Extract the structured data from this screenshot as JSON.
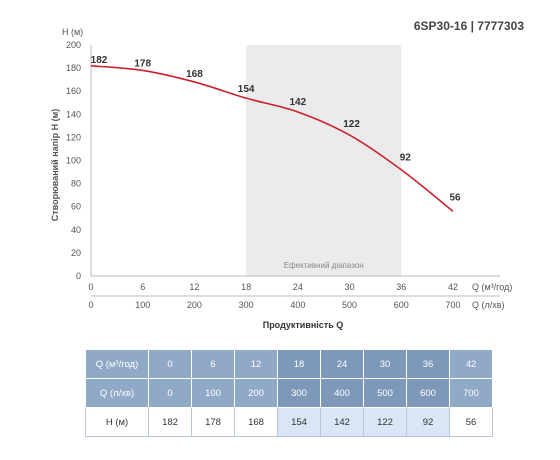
{
  "model_label": "6SP30-16 | 7777303",
  "colors": {
    "curve": "#cc1f2d",
    "band": "#ebebeb",
    "header": "#8fa9c6",
    "header_eff": "#7d98b8",
    "cell_eff": "#d9e6f5"
  },
  "chart_data": {
    "type": "line",
    "ylabel": "Створюваний напір Н (м)",
    "yunit": "Н (м)",
    "xlabel": "Продуктивність Q",
    "xunit_primary": "Q (м³/год)",
    "xunit_secondary": "Q (л/хв)",
    "ylim": [
      0,
      200
    ],
    "yticks": [
      0,
      20,
      40,
      60,
      80,
      100,
      120,
      140,
      160,
      180,
      200
    ],
    "xlim": [
      0,
      44
    ],
    "xticks": [
      0,
      6,
      12,
      18,
      24,
      30,
      36,
      42
    ],
    "xticks_secondary": [
      0,
      100,
      200,
      300,
      400,
      500,
      600,
      700
    ],
    "band": {
      "from": 18,
      "to": 36,
      "label": "Ефективний діапазон"
    },
    "grid": false,
    "series": [
      {
        "x": [
          0,
          6,
          12,
          18,
          24,
          30,
          36,
          42
        ],
        "values": [
          182,
          178,
          168,
          154,
          142,
          122,
          92,
          56
        ]
      }
    ]
  },
  "table": {
    "rows": [
      {
        "label": "Q (м³/год)",
        "cells": [
          "0",
          "6",
          "12",
          "18",
          "24",
          "30",
          "36",
          "42"
        ]
      },
      {
        "label": "Q (л/хв)",
        "cells": [
          "0",
          "100",
          "200",
          "300",
          "400",
          "500",
          "600",
          "700"
        ]
      },
      {
        "label": "Н (м)",
        "cells": [
          "182",
          "178",
          "168",
          "154",
          "142",
          "122",
          "92",
          "56"
        ]
      }
    ],
    "efficient_cols": [
      3,
      4,
      5,
      6
    ]
  }
}
